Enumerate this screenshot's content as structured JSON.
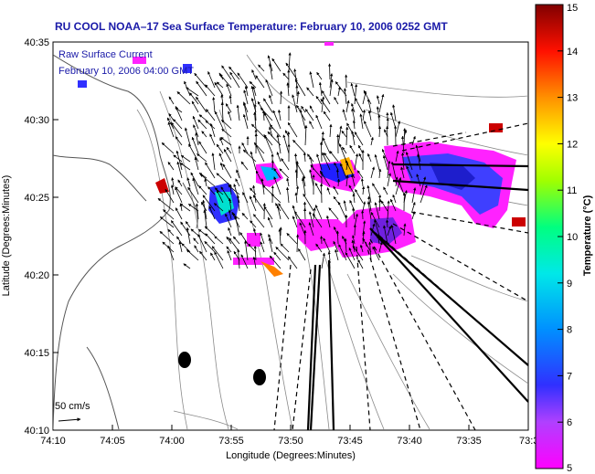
{
  "title": "RU COOL  NOAA–17  Sea Surface Temperature:  February 10, 2006 0252 GMT",
  "overlay": {
    "line1": "Raw Surface Current",
    "line2": "February 10, 2006 04:00 GMT"
  },
  "scale_label": "50 cm/s",
  "x_axis": {
    "label": "Longitude (Degrees:Minutes)",
    "ticks": [
      "74:10",
      "74:05",
      "74:00",
      "73:55",
      "73:50",
      "73:45",
      "73:40",
      "73:35",
      "73:3"
    ]
  },
  "y_axis": {
    "label": "Latitude (Degrees:Minutes)",
    "ticks": [
      "40:35",
      "40:30",
      "40:25",
      "40:20",
      "40:15",
      "40:10"
    ]
  },
  "colorbar": {
    "label": "Temperature (°C)",
    "ticks": [
      "15",
      "14",
      "13",
      "12",
      "11",
      "10",
      "9",
      "8",
      "7",
      "6",
      "5"
    ],
    "min": 5,
    "max": 15,
    "colors": [
      "#ff00ff",
      "#a020f0",
      "#0000ff",
      "#00a0ff",
      "#00ffff",
      "#00ff80",
      "#80ff00",
      "#ffff00",
      "#ff8000",
      "#ff0000",
      "#800000"
    ]
  }
}
